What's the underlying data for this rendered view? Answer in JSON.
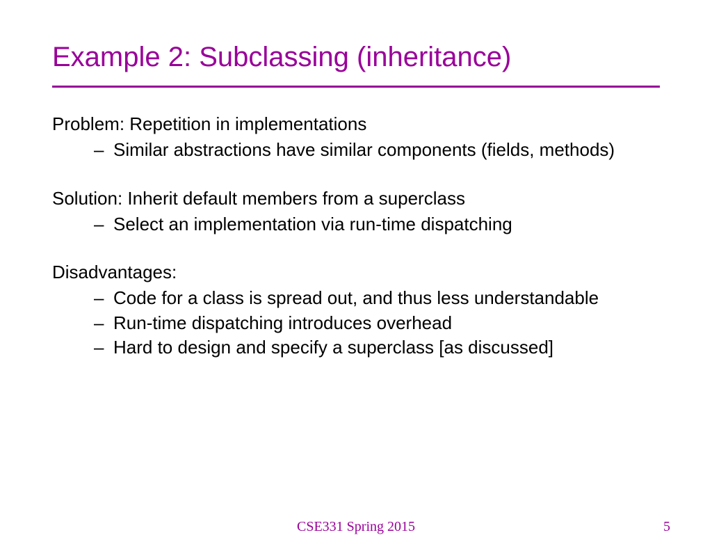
{
  "colors": {
    "accent": "#990099",
    "text": "#000000",
    "background": "#ffffff"
  },
  "typography": {
    "title_fontsize": 40,
    "body_fontsize": 26,
    "footer_fontsize": 20,
    "title_font": "Arial",
    "footer_font": "Times New Roman"
  },
  "title": "Example 2:  Subclassing (inheritance)",
  "sections": [
    {
      "head": "Problem:  Repetition in implementations",
      "bullets": [
        "Similar abstractions have similar components (fields, methods)"
      ]
    },
    {
      "head": "Solution:  Inherit default members from a superclass",
      "bullets": [
        "Select an implementation via run-time dispatching"
      ]
    },
    {
      "head": "Disadvantages:",
      "bullets": [
        "Code for a class is spread out, and thus less understandable",
        "Run-time dispatching introduces overhead",
        "Hard to design and specify a superclass [as discussed]"
      ]
    }
  ],
  "footer": {
    "center": "CSE331 Spring 2015",
    "page": "5"
  }
}
